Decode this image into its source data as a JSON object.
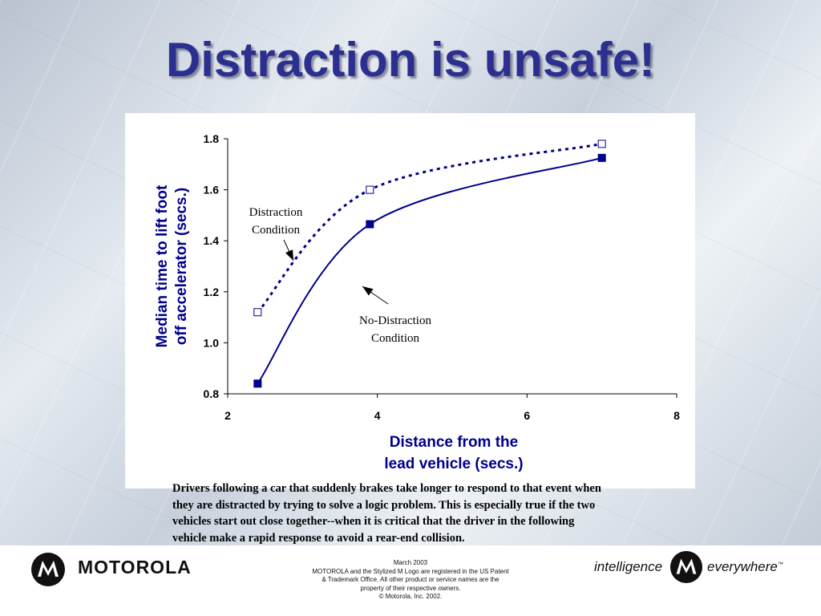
{
  "slide": {
    "title": "Distraction is unsafe!",
    "caption_lines": [
      "Drivers following a car that suddenly brakes take longer to respond to that event when",
      "they are distracted by trying to solve a logic problem.  This is especially true if the two",
      "vehicles start out close together--when it is critical that the driver in the following",
      "vehicle make a rapid response to avoid a rear-end collision."
    ]
  },
  "footer": {
    "brand": "MOTOROLA",
    "notes": [
      "March 2003",
      "MOTOROLA and the Stylized M Logo are registered in the US Patent",
      "& Trademark Office. All other product or service names are the",
      "property of their respective owners.",
      "© Motorola, Inc. 2002."
    ],
    "tagline_left": "intelligence",
    "tagline_right": "everywhere",
    "trademark": "™",
    "logo_icon": "motorola-m-logo-icon"
  },
  "chart_data": {
    "type": "line",
    "xlabel_lines": [
      "Distance from the",
      "lead vehicle (secs.)"
    ],
    "ylabel_lines": [
      "Median time to lift foot",
      "off accelerator (secs.)"
    ],
    "xlim": [
      2,
      8
    ],
    "ylim": [
      0.8,
      1.8
    ],
    "xticks": [
      "2",
      "4",
      "6",
      "8"
    ],
    "xtick_values": [
      2,
      4,
      6,
      8
    ],
    "yticks": [
      "0.8",
      "1.0",
      "1.2",
      "1.4",
      "1.6",
      "1.8"
    ],
    "ytick_values": [
      0.8,
      1.0,
      1.2,
      1.4,
      1.6,
      1.8
    ],
    "grid": false,
    "line_color": "#00008b",
    "series": [
      {
        "key": "distraction",
        "style": "dotted",
        "marker": "open-square",
        "points": [
          [
            2.4,
            1.12
          ],
          [
            3.9,
            1.6
          ],
          [
            7.0,
            1.78
          ]
        ]
      },
      {
        "key": "no-distraction",
        "style": "solid",
        "marker": "filled-square",
        "points": [
          [
            2.4,
            0.84
          ],
          [
            3.9,
            1.465
          ],
          [
            7.0,
            1.725
          ]
        ]
      }
    ],
    "annotations": [
      {
        "key": "distraction",
        "lines": [
          "Distraction",
          "Condition"
        ]
      },
      {
        "key": "no-distraction",
        "lines": [
          "No-Distraction",
          "Condition"
        ]
      }
    ]
  }
}
